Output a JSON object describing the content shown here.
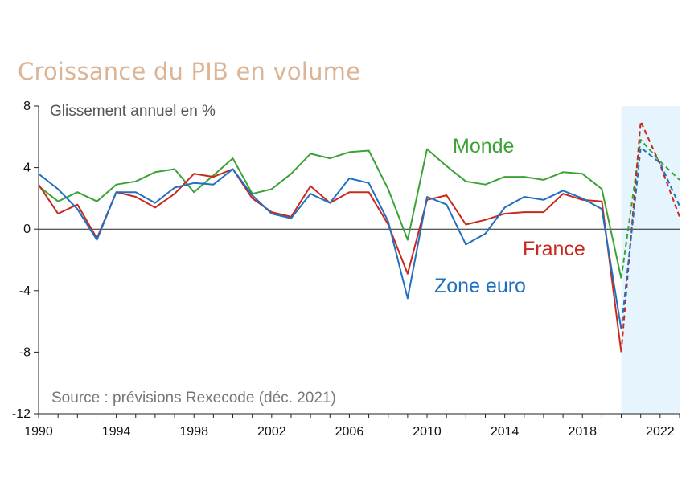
{
  "title": "Croissance du PIB en volume",
  "chart_data": {
    "type": "line",
    "subtitle": "Glissement annuel en %",
    "source": "Source : prévisions Rexecode (déc. 2021)",
    "ylim": [
      -12,
      8
    ],
    "yticks": [
      8,
      4,
      0,
      -4,
      -8,
      -12
    ],
    "xlim": [
      1990,
      2023
    ],
    "xticks": [
      1990,
      1994,
      1998,
      2002,
      2006,
      2010,
      2014,
      2018,
      2022
    ],
    "forecast_start": 2020,
    "forecast_shade_color": "#e6f4fd",
    "x": [
      1990,
      1991,
      1992,
      1993,
      1994,
      1995,
      1996,
      1997,
      1998,
      1999,
      2000,
      2001,
      2002,
      2003,
      2004,
      2005,
      2006,
      2007,
      2008,
      2009,
      2010,
      2011,
      2012,
      2013,
      2014,
      2015,
      2016,
      2017,
      2018,
      2019,
      2020,
      2021,
      2022,
      2023
    ],
    "series": [
      {
        "name": "Monde",
        "color": "#3ba235",
        "values": [
          2.8,
          1.8,
          2.4,
          1.8,
          2.9,
          3.1,
          3.7,
          3.9,
          2.4,
          3.5,
          4.6,
          2.3,
          2.6,
          3.6,
          4.9,
          4.6,
          5.0,
          5.1,
          2.6,
          -0.7,
          5.2,
          4.1,
          3.1,
          2.9,
          3.4,
          3.4,
          3.2,
          3.7,
          3.6,
          2.6,
          -3.2,
          5.8,
          4.4,
          3.2
        ]
      },
      {
        "name": "France",
        "color": "#c8291e",
        "values": [
          2.9,
          1.0,
          1.6,
          -0.6,
          2.4,
          2.1,
          1.4,
          2.3,
          3.6,
          3.4,
          3.9,
          2.0,
          1.1,
          0.8,
          2.8,
          1.7,
          2.4,
          2.4,
          0.3,
          -2.9,
          1.9,
          2.2,
          0.3,
          0.6,
          1.0,
          1.1,
          1.1,
          2.3,
          1.9,
          1.8,
          -8.0,
          7.0,
          4.2,
          0.8
        ]
      },
      {
        "name": "Zone euro",
        "color": "#1f70c1",
        "values": [
          3.6,
          2.6,
          1.3,
          -0.7,
          2.4,
          2.4,
          1.7,
          2.7,
          3.0,
          2.9,
          3.9,
          2.2,
          1.0,
          0.7,
          2.3,
          1.7,
          3.3,
          3.0,
          0.5,
          -4.5,
          2.1,
          1.6,
          -1.0,
          -0.3,
          1.4,
          2.1,
          1.9,
          2.5,
          2.0,
          1.3,
          -6.5,
          5.3,
          4.3,
          1.5
        ]
      }
    ]
  }
}
